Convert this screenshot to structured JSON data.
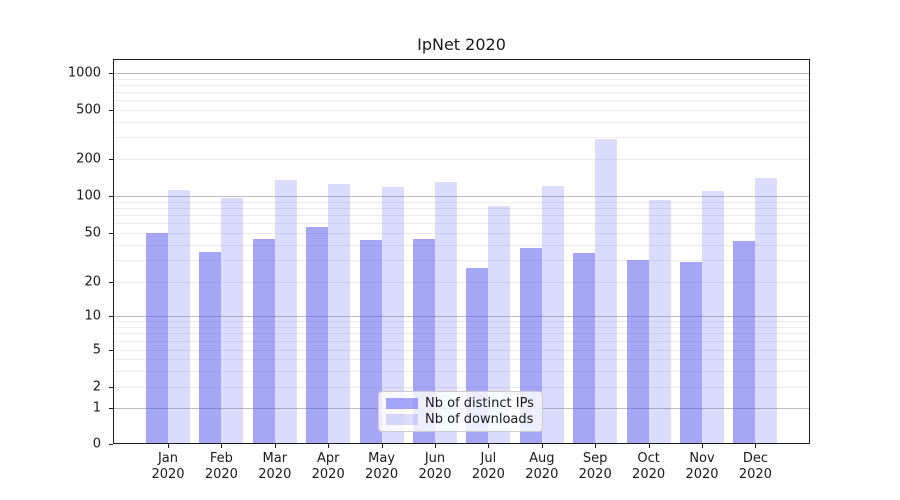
{
  "title": "IpNet 2020",
  "legend": {
    "items": [
      {
        "label": "Nb of distinct IPs"
      },
      {
        "label": "Nb of downloads"
      }
    ]
  },
  "chart_data": {
    "type": "bar",
    "title": "IpNet 2020",
    "xlabel": "",
    "ylabel": "",
    "yscale": "symlog",
    "ylim": [
      0,
      1300
    ],
    "grid": true,
    "legend_position": "lower center",
    "y_ticks": [
      0,
      1,
      2,
      5,
      10,
      20,
      50,
      100,
      200,
      500,
      1000
    ],
    "categories": [
      "Jan 2020",
      "Feb 2020",
      "Mar 2020",
      "Apr 2020",
      "May 2020",
      "Jun 2020",
      "Jul 2020",
      "Aug 2020",
      "Sep 2020",
      "Oct 2020",
      "Nov 2020",
      "Dec 2020"
    ],
    "series": [
      {
        "name": "Nb of distinct IPs",
        "color": "rgba(93,93,240,0.55)",
        "solid_color": "#a6a6f2",
        "values": [
          50,
          35,
          45,
          56,
          44,
          45,
          26,
          38,
          34,
          30,
          29,
          43
        ]
      },
      {
        "name": "Nb of downloads",
        "color": "rgba(93,93,240,0.22)",
        "solid_color": "#dbdbf9",
        "values": [
          112,
          97,
          135,
          125,
          118,
          130,
          83,
          120,
          290,
          93,
          110,
          140
        ]
      }
    ]
  }
}
